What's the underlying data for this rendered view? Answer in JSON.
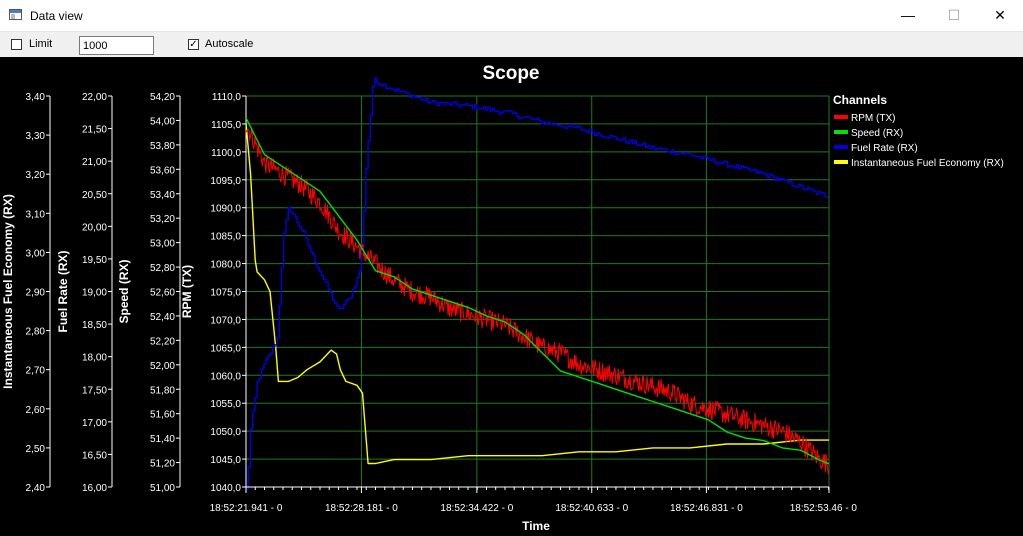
{
  "window": {
    "title": "Data view",
    "minimize_label": "—",
    "maximize_label": "☐",
    "close_label": "✕"
  },
  "toolbar": {
    "limit_label": "Limit",
    "limit_checked": false,
    "limit_value": "1000",
    "autoscale_label": "Autoscale",
    "autoscale_checked": true
  },
  "chart_data": {
    "type": "line",
    "title": "Scope",
    "xlabel": "Time",
    "x_ticks": [
      "18:52:21.941 - 0",
      "18:52:28.181 - 0",
      "18:52:34.422 - 0",
      "18:52:40.633 - 0",
      "18:52:46.831 - 0",
      "18:52:53.46 - 0"
    ],
    "x_range_s": [
      0,
      31.519
    ],
    "x_tick_s": [
      0,
      6.24,
      12.481,
      18.692,
      24.89,
      31.519
    ],
    "grid": true,
    "legend_title": "Channels",
    "legend_position": "top-right",
    "axes": [
      {
        "id": "rpm",
        "label": "RPM (TX)",
        "min": 1040,
        "max": 1110,
        "ticks": [
          "1040,0",
          "1045,0",
          "1050,0",
          "1055,0",
          "1060,0",
          "1065,0",
          "1070,0",
          "1075,0",
          "1080,0",
          "1085,0",
          "1090,0",
          "1095,0",
          "1100,0",
          "1105,0",
          "1110,0"
        ]
      },
      {
        "id": "speed",
        "label": "Speed (RX)",
        "min": 51.0,
        "max": 54.2,
        "ticks": [
          "51,00",
          "51,20",
          "51,40",
          "51,60",
          "51,80",
          "52,00",
          "52,20",
          "52,40",
          "52,60",
          "52,80",
          "53,00",
          "53,20",
          "53,40",
          "53,60",
          "53,80",
          "54,00",
          "54,20"
        ]
      },
      {
        "id": "fuel_rate",
        "label": "Fuel Rate (RX)",
        "min": 16.0,
        "max": 22.0,
        "ticks": [
          "16,00",
          "16,50",
          "17,00",
          "17,50",
          "18,00",
          "18,50",
          "19,00",
          "19,50",
          "20,00",
          "20,50",
          "21,00",
          "21,50",
          "22,00"
        ]
      },
      {
        "id": "ife",
        "label": "Instantaneous Fuel Economy (RX)",
        "min": 2.4,
        "max": 3.4,
        "ticks": [
          "2,40",
          "2,50",
          "2,60",
          "2,70",
          "2,80",
          "2,90",
          "3,00",
          "3,10",
          "3,20",
          "3,30",
          "3,40"
        ]
      }
    ],
    "series": [
      {
        "name": "RPM (TX)",
        "axis": "rpm",
        "color": "#ff0000",
        "noise": 1.8,
        "points": [
          [
            0,
            1105
          ],
          [
            1,
            1098
          ],
          [
            2,
            1096
          ],
          [
            3,
            1094
          ],
          [
            4,
            1091
          ],
          [
            5,
            1086
          ],
          [
            6,
            1083
          ],
          [
            7,
            1080
          ],
          [
            8,
            1077
          ],
          [
            9,
            1075
          ],
          [
            10,
            1074
          ],
          [
            11,
            1072
          ],
          [
            12,
            1071
          ],
          [
            13,
            1070
          ],
          [
            14,
            1069
          ],
          [
            15,
            1067
          ],
          [
            16,
            1065
          ],
          [
            17,
            1064
          ],
          [
            18,
            1062
          ],
          [
            19,
            1061
          ],
          [
            20,
            1060
          ],
          [
            21,
            1059
          ],
          [
            22,
            1058
          ],
          [
            23,
            1057
          ],
          [
            24,
            1055
          ],
          [
            25,
            1054
          ],
          [
            26,
            1053
          ],
          [
            27,
            1052
          ],
          [
            28,
            1051
          ],
          [
            29,
            1050
          ],
          [
            30,
            1048
          ],
          [
            31,
            1045
          ],
          [
            31.519,
            1044
          ]
        ]
      },
      {
        "name": "Speed (RX)",
        "axis": "speed",
        "color": "#00e000",
        "noise": 0,
        "points": [
          [
            0,
            54.02
          ],
          [
            1,
            53.72
          ],
          [
            2,
            53.62
          ],
          [
            3,
            53.52
          ],
          [
            4,
            53.42
          ],
          [
            5,
            53.22
          ],
          [
            6,
            53.02
          ],
          [
            7,
            52.77
          ],
          [
            8,
            52.72
          ],
          [
            9,
            52.62
          ],
          [
            10,
            52.57
          ],
          [
            11,
            52.52
          ],
          [
            12,
            52.47
          ],
          [
            13,
            52.4
          ],
          [
            14,
            52.35
          ],
          [
            15,
            52.25
          ],
          [
            16,
            52.1
          ],
          [
            17,
            51.95
          ],
          [
            18,
            51.9
          ],
          [
            19,
            51.85
          ],
          [
            20,
            51.8
          ],
          [
            21,
            51.75
          ],
          [
            22,
            51.7
          ],
          [
            23,
            51.65
          ],
          [
            24,
            51.6
          ],
          [
            25,
            51.55
          ],
          [
            26,
            51.45
          ],
          [
            27,
            51.4
          ],
          [
            28,
            51.38
          ],
          [
            29,
            51.32
          ],
          [
            30,
            51.3
          ],
          [
            31,
            51.22
          ],
          [
            31.519,
            51.19
          ]
        ]
      },
      {
        "name": "Fuel Rate (RX)",
        "axis": "fuel_rate",
        "color": "#0000e0",
        "noise": 0.04,
        "points": [
          [
            0,
            15.95
          ],
          [
            0.05,
            15.9
          ],
          [
            0.2,
            16.8
          ],
          [
            0.6,
            17.6
          ],
          [
            1,
            17.9
          ],
          [
            1.4,
            18.1
          ],
          [
            1.7,
            18.3
          ],
          [
            2,
            19.8
          ],
          [
            2.3,
            20.3
          ],
          [
            2.7,
            20.1
          ],
          [
            3.1,
            19.9
          ],
          [
            3.5,
            19.6
          ],
          [
            4,
            19.3
          ],
          [
            4.5,
            19.0
          ],
          [
            5,
            18.7
          ],
          [
            5.6,
            18.9
          ],
          [
            6,
            19.2
          ],
          [
            6.2,
            19.4
          ],
          [
            6.5,
            21.0
          ],
          [
            6.9,
            22.3
          ],
          [
            7.2,
            22.2
          ],
          [
            8,
            22.1
          ],
          [
            10,
            21.9
          ],
          [
            12,
            21.85
          ],
          [
            14,
            21.75
          ],
          [
            16,
            21.6
          ],
          [
            18,
            21.5
          ],
          [
            20,
            21.35
          ],
          [
            22,
            21.2
          ],
          [
            24,
            21.1
          ],
          [
            26,
            20.95
          ],
          [
            28,
            20.8
          ],
          [
            30,
            20.6
          ],
          [
            31,
            20.5
          ],
          [
            31.519,
            20.45
          ]
        ]
      },
      {
        "name": "Instantaneous Fuel Economy (RX)",
        "axis": "ife",
        "color": "#ffff00",
        "noise": 0,
        "points": [
          [
            0,
            3.33
          ],
          [
            0.25,
            3.2
          ],
          [
            0.5,
            2.98
          ],
          [
            0.6,
            2.95
          ],
          [
            1,
            2.93
          ],
          [
            1.3,
            2.9
          ],
          [
            1.6,
            2.76
          ],
          [
            1.75,
            2.67
          ],
          [
            2.3,
            2.67
          ],
          [
            2.8,
            2.68
          ],
          [
            3.3,
            2.7
          ],
          [
            4,
            2.72
          ],
          [
            4.6,
            2.75
          ],
          [
            4.9,
            2.74
          ],
          [
            5.1,
            2.7
          ],
          [
            5.4,
            2.67
          ],
          [
            6,
            2.66
          ],
          [
            6.3,
            2.64
          ],
          [
            6.6,
            2.46
          ],
          [
            7,
            2.46
          ],
          [
            8,
            2.47
          ],
          [
            10,
            2.47
          ],
          [
            12,
            2.48
          ],
          [
            14,
            2.48
          ],
          [
            16,
            2.48
          ],
          [
            18,
            2.49
          ],
          [
            20,
            2.49
          ],
          [
            22,
            2.5
          ],
          [
            24,
            2.5
          ],
          [
            26,
            2.51
          ],
          [
            28,
            2.51
          ],
          [
            30,
            2.52
          ],
          [
            31,
            2.52
          ],
          [
            31.519,
            2.52
          ]
        ]
      }
    ]
  }
}
